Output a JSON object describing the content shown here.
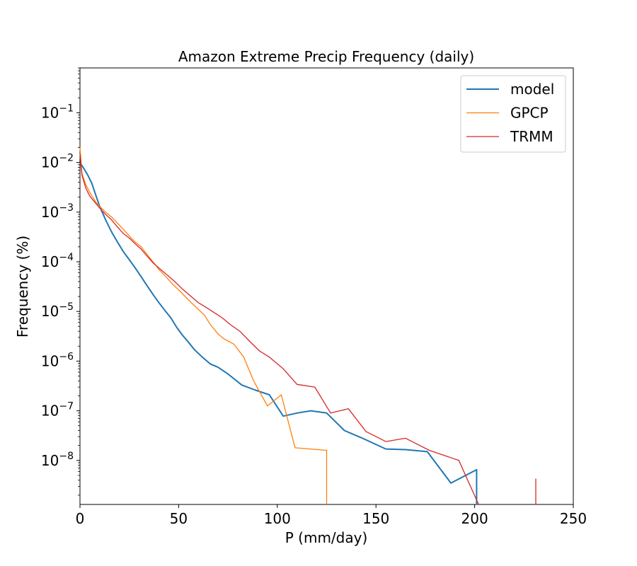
{
  "chart_data": {
    "type": "line",
    "title": "Amazon Extreme Precip Frequency (daily)",
    "xlabel": "P (mm/day)",
    "ylabel": "Frequency (%)",
    "xlim": [
      0,
      250
    ],
    "ylim": [
      1.3e-09,
      0.8
    ],
    "yscale": "log",
    "x_ticks": [
      0,
      50,
      100,
      150,
      200,
      250
    ],
    "x_tick_labels": [
      "0",
      "50",
      "100",
      "150",
      "200",
      "250"
    ],
    "y_ticks": [
      1e-08,
      1e-07,
      1e-06,
      1e-05,
      0.0001,
      0.001,
      0.01,
      0.1
    ],
    "y_tick_labels": [
      {
        "base": "10",
        "exp": "−8"
      },
      {
        "base": "10",
        "exp": "−7"
      },
      {
        "base": "10",
        "exp": "−6"
      },
      {
        "base": "10",
        "exp": "−5"
      },
      {
        "base": "10",
        "exp": "−4"
      },
      {
        "base": "10",
        "exp": "−3"
      },
      {
        "base": "10",
        "exp": "−2"
      },
      {
        "base": "10",
        "exp": "−1"
      }
    ],
    "legend_position": "top-right",
    "series": [
      {
        "name": "model",
        "color": "#1f77b4",
        "points": [
          [
            0,
            0.01
          ],
          [
            2,
            0.0075
          ],
          [
            4,
            0.0055
          ],
          [
            6,
            0.0038
          ],
          [
            8,
            0.0022
          ],
          [
            10,
            0.0013
          ],
          [
            13,
            0.0007
          ],
          [
            16,
            0.0004
          ],
          [
            19,
            0.00025
          ],
          [
            22,
            0.00016
          ],
          [
            25,
            0.00011
          ],
          [
            28,
            7.5e-05
          ],
          [
            31,
            5e-05
          ],
          [
            34,
            3.3e-05
          ],
          [
            37,
            2.2e-05
          ],
          [
            40,
            1.5e-05
          ],
          [
            43,
            1.05e-05
          ],
          [
            46,
            7.5e-06
          ],
          [
            49,
            4.8e-06
          ],
          [
            52,
            3.3e-06
          ],
          [
            55,
            2.4e-06
          ],
          [
            58,
            1.7e-06
          ],
          [
            62,
            1.2e-06
          ],
          [
            66,
            8.8e-07
          ],
          [
            70,
            7.5e-07
          ],
          [
            75,
            5.5e-07
          ],
          [
            82,
            3.3e-07
          ],
          [
            89,
            2.6e-07
          ],
          [
            96,
            2.1e-07
          ],
          [
            103,
            7.8e-08
          ],
          [
            110,
            9e-08
          ],
          [
            117,
            1e-07
          ],
          [
            125,
            9e-08
          ],
          [
            134,
            4e-08
          ],
          [
            144,
            2.7e-08
          ],
          [
            155,
            1.7e-08
          ],
          [
            165,
            1.65e-08
          ],
          [
            176,
            1.5e-08
          ],
          [
            188,
            3.5e-09
          ],
          [
            201,
            6.5e-09
          ],
          [
            201,
            1.3e-09
          ]
        ]
      },
      {
        "name": "GPCP",
        "color": "#ff7f0e",
        "points": [
          [
            0,
            0.02
          ],
          [
            1,
            0.006
          ],
          [
            3,
            0.0035
          ],
          [
            5,
            0.0025
          ],
          [
            8,
            0.0016
          ],
          [
            10,
            0.0013
          ],
          [
            13,
            0.001
          ],
          [
            16,
            0.0008
          ],
          [
            19,
            0.0006
          ],
          [
            22,
            0.00045
          ],
          [
            25,
            0.00033
          ],
          [
            28,
            0.00025
          ],
          [
            31,
            0.0002
          ],
          [
            34,
            0.00014
          ],
          [
            37,
            0.0001
          ],
          [
            40,
            7e-05
          ],
          [
            44,
            4.8e-05
          ],
          [
            47,
            3.5e-05
          ],
          [
            51,
            2.5e-05
          ],
          [
            55,
            1.7e-05
          ],
          [
            59,
            1.2e-05
          ],
          [
            63,
            8.5e-06
          ],
          [
            66,
            5.5e-06
          ],
          [
            70,
            3.5e-06
          ],
          [
            73,
            2.8e-06
          ],
          [
            78,
            2.2e-06
          ],
          [
            83,
            1.2e-06
          ],
          [
            88,
            4e-07
          ],
          [
            95,
            1.25e-07
          ],
          [
            102,
            2.1e-07
          ],
          [
            109,
            1.8e-08
          ],
          [
            125,
            1.6e-08
          ],
          [
            125,
            1.3e-09
          ]
        ]
      },
      {
        "name": "TRMM",
        "color": "#d62728",
        "points": [
          [
            0,
            0.015
          ],
          [
            1,
            0.0055
          ],
          [
            3,
            0.003
          ],
          [
            5,
            0.0021
          ],
          [
            8,
            0.0015
          ],
          [
            10,
            0.0012
          ],
          [
            13,
            0.0009
          ],
          [
            16,
            0.0007
          ],
          [
            19,
            0.0005
          ],
          [
            22,
            0.00037
          ],
          [
            25,
            0.0003
          ],
          [
            28,
            0.00023
          ],
          [
            31,
            0.00018
          ],
          [
            34,
            0.00013
          ],
          [
            37,
            9.5e-05
          ],
          [
            40,
            7.5e-05
          ],
          [
            44,
            5.5e-05
          ],
          [
            48,
            4e-05
          ],
          [
            52,
            2.8e-05
          ],
          [
            56,
            2.05e-05
          ],
          [
            60,
            1.5e-05
          ],
          [
            64,
            1.2e-05
          ],
          [
            68,
            9.5e-06
          ],
          [
            72,
            7.5e-06
          ],
          [
            76,
            5.5e-06
          ],
          [
            81,
            4e-06
          ],
          [
            86,
            2.5e-06
          ],
          [
            91,
            1.6e-06
          ],
          [
            96,
            1.2e-06
          ],
          [
            103,
            7e-07
          ],
          [
            110,
            3.4e-07
          ],
          [
            119,
            3e-07
          ],
          [
            127,
            9e-08
          ],
          [
            136,
            1.1e-07
          ],
          [
            145,
            3.8e-08
          ],
          [
            155,
            2.4e-08
          ],
          [
            165,
            2.8e-08
          ],
          [
            177,
            1.6e-08
          ],
          [
            192,
            1e-08
          ],
          [
            202,
            1.3e-09
          ]
        ]
      }
    ],
    "extra_segments": [
      {
        "series": "TRMM",
        "color": "#d62728",
        "points": [
          [
            231,
            4.3e-09
          ],
          [
            231,
            1.3e-09
          ]
        ]
      }
    ]
  }
}
